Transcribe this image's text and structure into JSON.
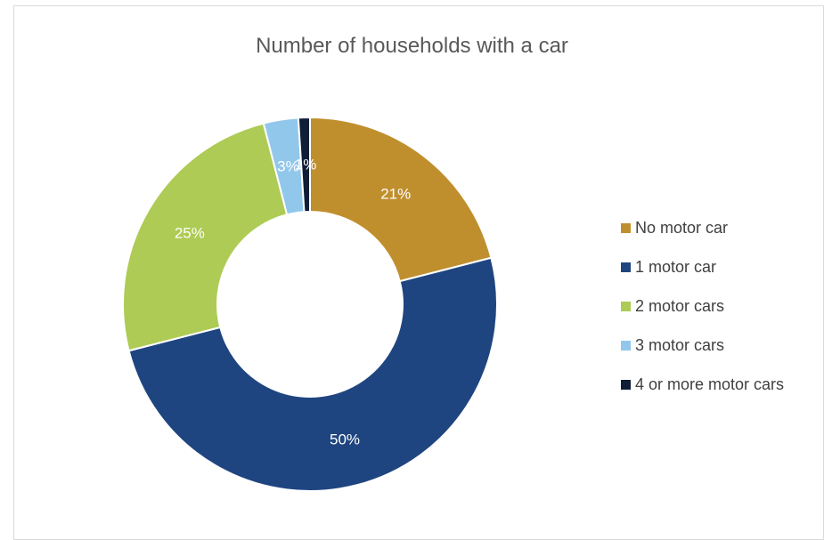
{
  "chart_data": {
    "type": "pie",
    "title": "Number of households with a car",
    "legend_position": "right",
    "slices": [
      {
        "label": "No motor car",
        "value": 21,
        "data_label": "21%",
        "color": "#C08F2D"
      },
      {
        "label": "1 motor car",
        "value": 50,
        "data_label": "50%",
        "color": "#1F4580"
      },
      {
        "label": "2 motor cars",
        "value": 25,
        "data_label": "25%",
        "color": "#AECB55"
      },
      {
        "label": "3 motor cars",
        "value": 3,
        "data_label": "3%",
        "color": "#92C7EC"
      },
      {
        "label": "4 or more motor cars",
        "value": 1,
        "data_label": "1%",
        "color": "#0F1E36"
      }
    ]
  }
}
